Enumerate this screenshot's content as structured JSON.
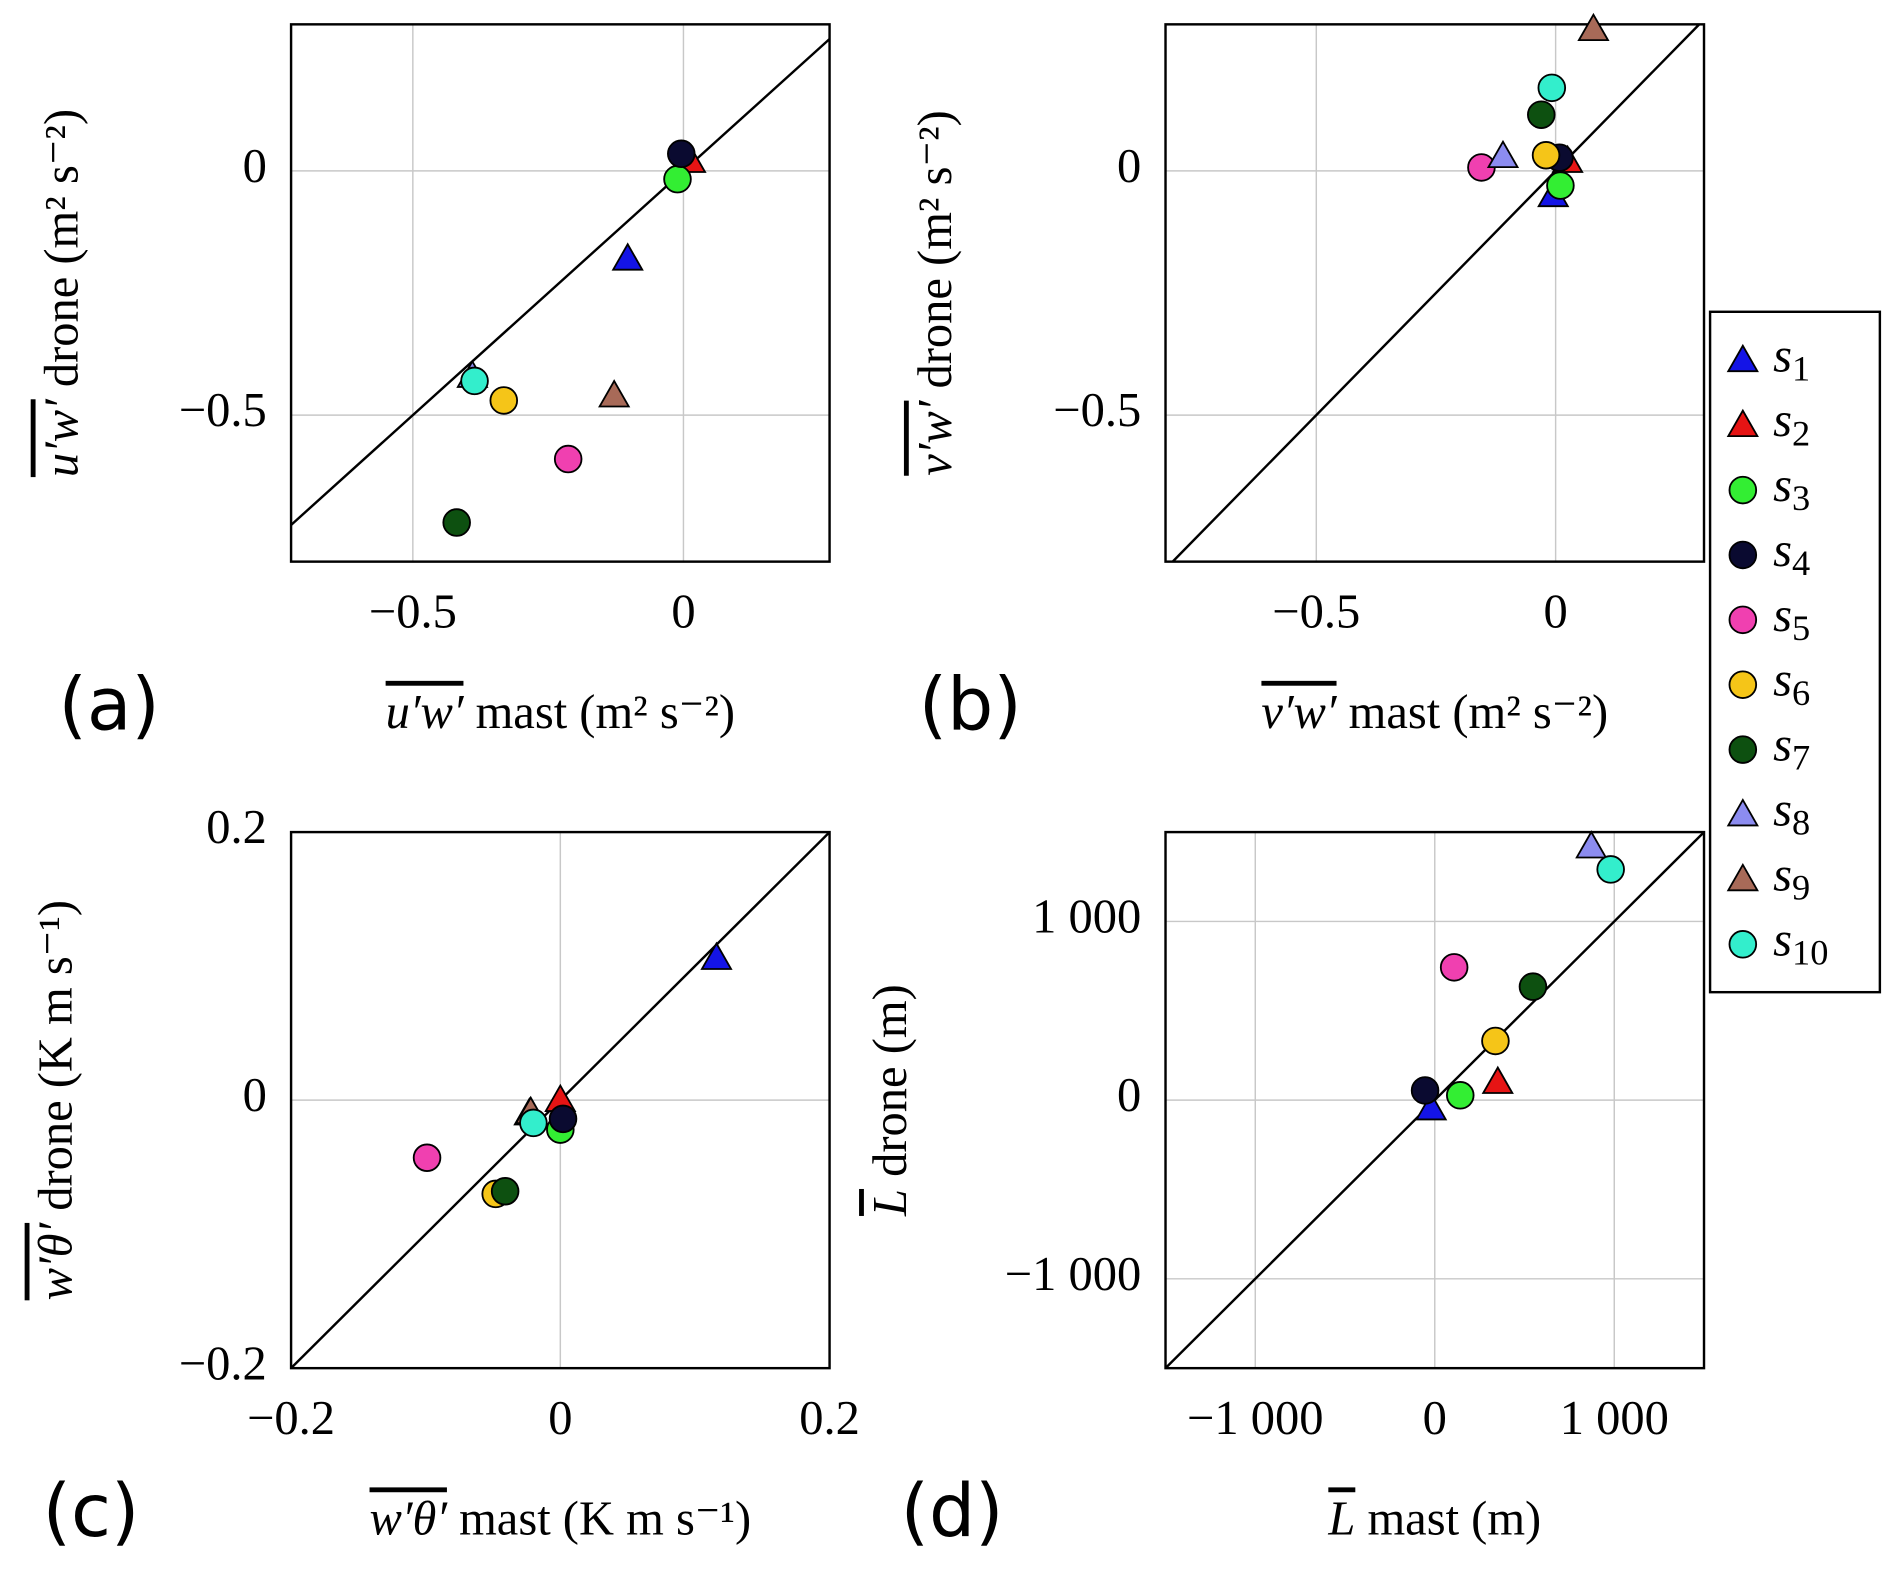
{
  "legend": {
    "position": "right",
    "items": [
      {
        "name": "s1",
        "color": "#1414e6",
        "marker": "triangle"
      },
      {
        "name": "s2",
        "color": "#e61414",
        "marker": "triangle"
      },
      {
        "name": "s3",
        "color": "#33ee33",
        "marker": "circle"
      },
      {
        "name": "s4",
        "color": "#0a0a30",
        "marker": "circle"
      },
      {
        "name": "s5",
        "color": "#f040b0",
        "marker": "circle"
      },
      {
        "name": "s6",
        "color": "#f5c518",
        "marker": "circle"
      },
      {
        "name": "s7",
        "color": "#0d5010",
        "marker": "circle"
      },
      {
        "name": "s8",
        "color": "#8c8cf0",
        "marker": "triangle"
      },
      {
        "name": "s9",
        "color": "#a86a58",
        "marker": "triangle"
      },
      {
        "name": "s10",
        "color": "#33eecc",
        "marker": "circle"
      }
    ]
  },
  "chart_data": [
    {
      "type": "scatter",
      "panel": "(a)",
      "one_to_one": true,
      "grid": true,
      "xlabel": {
        "symbol": "u′w′",
        "text": " mast (m² s⁻²)"
      },
      "ylabel": {
        "symbol": "u′w′",
        "text": " drone (m² s⁻²)"
      },
      "xlim": [
        -0.725,
        0.27
      ],
      "ylim": [
        -0.8,
        0.3
      ],
      "xticks": [
        {
          "value": -0.5,
          "label": "−0.5"
        },
        0
      ],
      "yticks": [
        {
          "value": -0.5,
          "label": "−0.5"
        },
        0
      ],
      "x": [
        -0.103,
        0.013,
        -0.011,
        -0.004,
        -0.213,
        -0.332,
        -0.419,
        -0.39,
        -0.128,
        -0.386
      ],
      "y": [
        -0.18,
        0.02,
        -0.017,
        0.035,
        -0.59,
        -0.47,
        -0.72,
        -0.42,
        -0.46,
        -0.43
      ]
    },
    {
      "type": "scatter",
      "panel": "(b)",
      "one_to_one": true,
      "grid": true,
      "xlabel": {
        "symbol": "v′w′",
        "text": " mast (m² s⁻²)"
      },
      "ylabel": {
        "symbol": "v′w′",
        "text": " drone (m² s⁻²)"
      },
      "xlim": [
        -0.815,
        0.31
      ],
      "ylim": [
        -0.8,
        0.3
      ],
      "xticks": [
        {
          "value": -0.5,
          "label": "−0.5"
        },
        0
      ],
      "yticks": [
        {
          "value": -0.5,
          "label": "−0.5"
        },
        0
      ],
      "x": [
        -0.005,
        0.025,
        0.01,
        0.008,
        -0.155,
        -0.02,
        -0.03,
        -0.11,
        0.079,
        -0.008
      ],
      "y": [
        -0.05,
        0.02,
        -0.03,
        0.027,
        0.007,
        0.032,
        0.115,
        0.03,
        0.29,
        0.17
      ]
    },
    {
      "type": "scatter",
      "panel": "(c)",
      "one_to_one": true,
      "grid": true,
      "xlabel": {
        "symbol": "w′θ′",
        "text": " mast (K m s⁻¹)"
      },
      "ylabel": {
        "symbol": "w′θ′",
        "text": " drone (K m s⁻¹)"
      },
      "xlim": [
        -0.2,
        0.2
      ],
      "ylim": [
        -0.2,
        0.2
      ],
      "xticks": [
        {
          "value": -0.2,
          "label": "−0.2"
        },
        0,
        0.2
      ],
      "yticks": [
        {
          "value": -0.2,
          "label": "−0.2"
        },
        0,
        0.2
      ],
      "x": [
        0.116,
        0,
        0,
        0.002,
        -0.099,
        -0.048,
        -0.041,
        -0.023,
        -0.022,
        -0.02
      ],
      "y": [
        0.106,
        0,
        -0.022,
        -0.014,
        -0.043,
        -0.07,
        -0.068,
        -0.01,
        -0.009,
        -0.017
      ]
    },
    {
      "type": "scatter",
      "panel": "(d)",
      "one_to_one": true,
      "grid": true,
      "xlabel": {
        "symbol": "L",
        "text": " mast (m)"
      },
      "ylabel": {
        "symbol": "L",
        "text": " drone (m)"
      },
      "xlim": [
        -1500,
        1500
      ],
      "ylim": [
        -1500,
        1500
      ],
      "xticks": [
        {
          "value": -1000,
          "label": "−1 000"
        },
        0,
        {
          "value": 1000,
          "label": "1 000"
        }
      ],
      "yticks": [
        {
          "value": -1000,
          "label": "−1 000"
        },
        0,
        {
          "value": 1000,
          "label": "1 000"
        }
      ],
      "x": [
        -20,
        351,
        142,
        -54,
        108,
        338,
        547,
        872,
        null,
        980
      ],
      "y": [
        -47,
        101,
        27,
        54,
        743,
        331,
        635,
        1419,
        null,
        1291
      ]
    }
  ]
}
